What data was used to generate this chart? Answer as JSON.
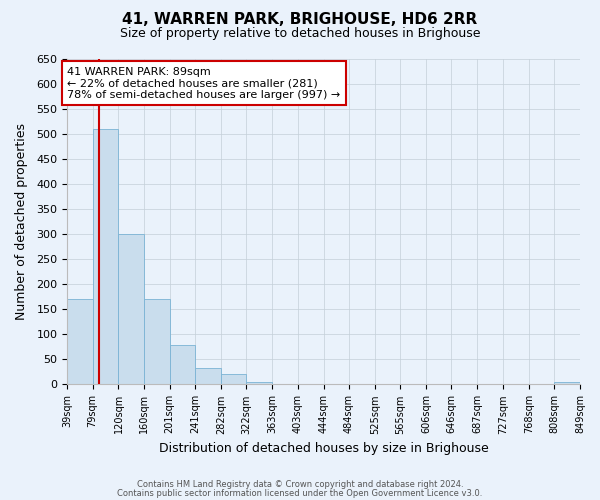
{
  "title": "41, WARREN PARK, BRIGHOUSE, HD6 2RR",
  "subtitle": "Size of property relative to detached houses in Brighouse",
  "xlabel": "Distribution of detached houses by size in Brighouse",
  "ylabel": "Number of detached properties",
  "bin_edges": [
    39,
    79,
    120,
    160,
    201,
    241,
    282,
    322,
    363,
    403,
    444,
    484,
    525,
    565,
    606,
    646,
    687,
    727,
    768,
    808,
    849
  ],
  "bar_heights": [
    170,
    510,
    300,
    170,
    78,
    32,
    20,
    5,
    0,
    0,
    0,
    0,
    0,
    0,
    0,
    0,
    0,
    0,
    0,
    5
  ],
  "bar_color": "#c9dded",
  "bar_edge_color": "#7ab3d4",
  "property_line_x": 89,
  "property_line_color": "#cc0000",
  "annotation_title": "41 WARREN PARK: 89sqm",
  "annotation_line1": "← 22% of detached houses are smaller (281)",
  "annotation_line2": "78% of semi-detached houses are larger (997) →",
  "annotation_box_facecolor": "#ffffff",
  "annotation_box_edgecolor": "#cc0000",
  "tick_labels": [
    "39sqm",
    "79sqm",
    "120sqm",
    "160sqm",
    "201sqm",
    "241sqm",
    "282sqm",
    "322sqm",
    "363sqm",
    "403sqm",
    "444sqm",
    "484sqm",
    "525sqm",
    "565sqm",
    "606sqm",
    "646sqm",
    "687sqm",
    "727sqm",
    "768sqm",
    "808sqm",
    "849sqm"
  ],
  "ylim": [
    0,
    650
  ],
  "yticks": [
    0,
    50,
    100,
    150,
    200,
    250,
    300,
    350,
    400,
    450,
    500,
    550,
    600,
    650
  ],
  "footer_line1": "Contains HM Land Registry data © Crown copyright and database right 2024.",
  "footer_line2": "Contains public sector information licensed under the Open Government Licence v3.0.",
  "background_color": "#eaf2fb",
  "plot_bg_color": "#eaf2fb",
  "title_fontsize": 11,
  "subtitle_fontsize": 9,
  "xlabel_fontsize": 9,
  "ylabel_fontsize": 9,
  "tick_fontsize": 7,
  "ytick_fontsize": 8,
  "footer_fontsize": 6,
  "annot_fontsize": 8
}
